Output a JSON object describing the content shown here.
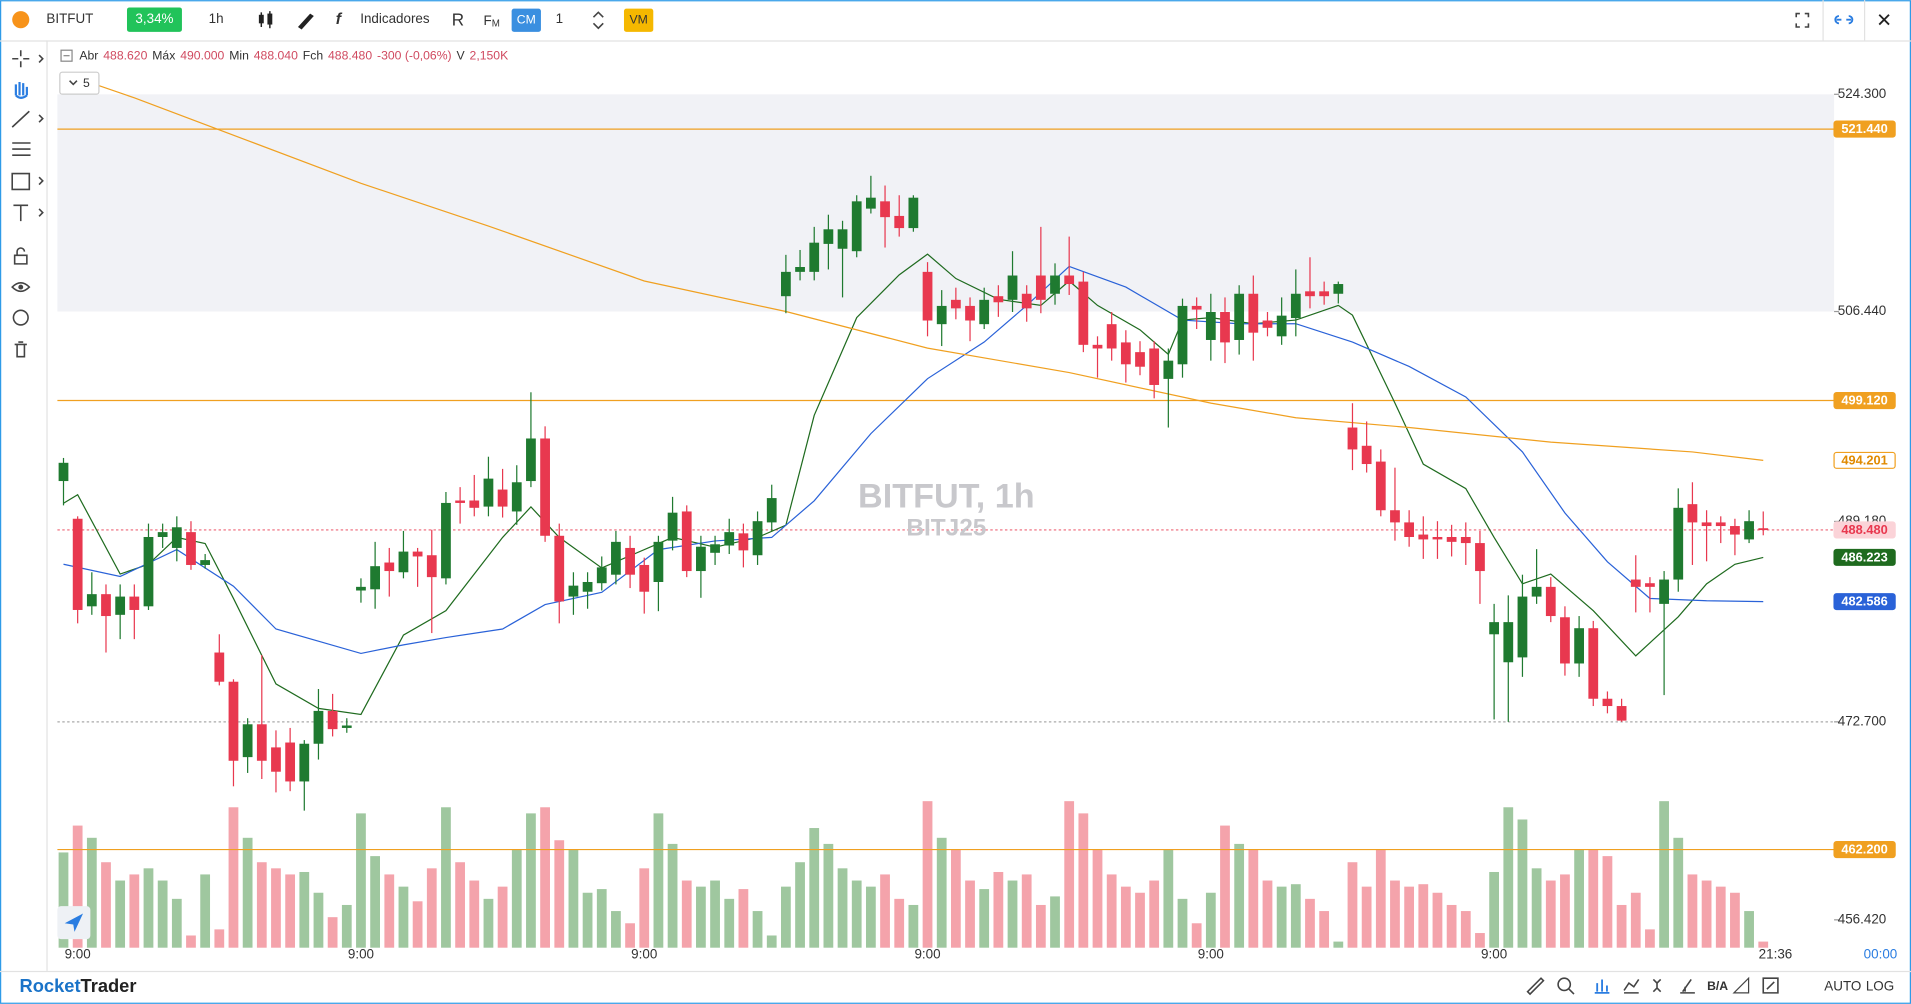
{
  "toolbar": {
    "symbol": "BITFUT",
    "change": "3,34%",
    "interval": "1h",
    "indicators": "Indicadores",
    "rx": "R",
    "fm": "F",
    "fm_sub": "M",
    "cm": "CM",
    "quantity": "1",
    "vm": "VM"
  },
  "legend": {
    "open_label": "Abr",
    "open": "488.620",
    "high_label": "Máx",
    "high": "490.000",
    "low_label": "Min",
    "low": "488.040",
    "close_label": "Fch",
    "close": "488.480",
    "change": "-300 (-0,06%)",
    "volume_label": "V",
    "volume": "2,150K",
    "collapse": "5"
  },
  "chart_data": {
    "type": "candlestick",
    "watermark": "BITFUT, 1h",
    "watermark_sub": "BITJ25",
    "categories": [
      null,
      "9:00",
      null,
      null,
      null,
      null,
      null,
      null,
      null,
      null,
      null,
      null,
      null,
      null,
      null,
      null,
      null,
      null,
      null,
      null,
      null,
      "9:00",
      null,
      null,
      null,
      null,
      null,
      null,
      null,
      null,
      null,
      null,
      null,
      null,
      null,
      null,
      null,
      null,
      null,
      null,
      null,
      "9:00",
      null,
      null,
      null,
      null,
      null,
      null,
      null,
      null,
      null,
      null,
      null,
      null,
      null,
      null,
      null,
      null,
      null,
      null,
      null,
      "9:00",
      null,
      null,
      null,
      null,
      null,
      null,
      null,
      null,
      null,
      null,
      null,
      null,
      null,
      null,
      null,
      null,
      null,
      null,
      null,
      "9:00",
      null,
      null,
      null,
      null,
      null,
      null,
      null,
      null,
      null,
      null,
      null,
      null,
      null,
      null,
      null,
      null,
      null,
      null,
      null,
      "9:00",
      null,
      null,
      null,
      null,
      null,
      null,
      null,
      null,
      null,
      null,
      null,
      null,
      null,
      null,
      null,
      null,
      null,
      null,
      null
    ],
    "candles": [
      [
        492.5,
        494.4,
        490.5,
        494
      ],
      [
        489.4,
        489.6,
        480.8,
        481.9
      ],
      [
        482.2,
        485,
        481.5,
        483.2
      ],
      [
        483.2,
        484,
        478.4,
        481.4
      ],
      [
        481.5,
        484,
        479.5,
        483
      ],
      [
        483,
        484,
        479.5,
        481.9
      ],
      [
        482.2,
        489,
        481.9,
        487.9
      ],
      [
        487.9,
        489,
        487,
        488.3
      ],
      [
        487,
        489.6,
        485.9,
        488.7
      ],
      [
        488.3,
        489.2,
        485.2,
        485.6
      ],
      [
        485.6,
        486.5,
        485.3,
        486
      ],
      [
        478.4,
        479.9,
        475.7,
        476
      ],
      [
        476,
        476.2,
        467.4,
        469.5
      ],
      [
        469.8,
        473,
        468.5,
        472.5
      ],
      [
        472.5,
        478.2,
        468,
        469.5
      ],
      [
        470.6,
        472,
        466.9,
        468.6
      ],
      [
        471,
        472.2,
        467,
        467.8
      ],
      [
        467.8,
        471.2,
        465.4,
        470.9
      ],
      [
        470.9,
        475.4,
        469.6,
        473.6
      ],
      [
        473.6,
        475,
        471.5,
        472.1
      ],
      [
        472.2,
        473,
        471.8,
        472.4
      ],
      [
        483.5,
        484.5,
        482.5,
        483.8
      ],
      [
        483.6,
        487.5,
        482,
        485.5
      ],
      [
        485.8,
        487,
        483,
        485.1
      ],
      [
        485,
        488.4,
        484.5,
        486.7
      ],
      [
        486.7,
        487,
        483.8,
        486.3
      ],
      [
        486.4,
        488.5,
        480,
        484.6
      ],
      [
        484.5,
        491.6,
        484,
        490.7
      ],
      [
        490.9,
        492,
        489,
        490.7
      ],
      [
        490.9,
        493,
        489.6,
        490.3
      ],
      [
        490.4,
        494.5,
        489.6,
        492.7
      ],
      [
        491.8,
        493.5,
        489.5,
        490.4
      ],
      [
        490,
        493.8,
        488.9,
        492.4
      ],
      [
        492.5,
        499.8,
        492,
        496
      ],
      [
        496,
        497,
        487.5,
        488
      ],
      [
        488,
        489,
        480.8,
        482.6
      ],
      [
        483,
        485,
        481.5,
        483.9
      ],
      [
        483.4,
        485,
        482,
        484.2
      ],
      [
        484.1,
        486.3,
        483.5,
        485.4
      ],
      [
        484.8,
        488.4,
        484,
        487.5
      ],
      [
        487,
        488,
        483.7,
        484.8
      ],
      [
        485.6,
        486.2,
        481.6,
        483.4
      ],
      [
        484.2,
        488,
        481.8,
        487.5
      ],
      [
        487.6,
        491.2,
        486.8,
        489.9
      ],
      [
        490,
        490.5,
        484.6,
        485.1
      ],
      [
        485.1,
        488,
        482.9,
        487.1
      ],
      [
        486.6,
        488,
        485.6,
        487.3
      ],
      [
        487.2,
        489.4,
        486.5,
        488.3
      ],
      [
        488.2,
        489,
        485.4,
        486.8
      ],
      [
        486.4,
        490,
        485.6,
        489.2
      ],
      [
        489.1,
        492.2,
        488.4,
        491.1
      ],
      [
        507.7,
        511.1,
        506.3,
        509.7
      ],
      [
        509.7,
        511.5,
        509,
        510.1
      ],
      [
        509.7,
        513.4,
        509,
        512.1
      ],
      [
        512,
        514.4,
        509.9,
        513.2
      ],
      [
        511.6,
        513.9,
        507.6,
        513.2
      ],
      [
        511.4,
        516,
        510.9,
        515.5
      ],
      [
        514.9,
        517.6,
        514.5,
        515.8
      ],
      [
        515.5,
        516.8,
        511.7,
        514.2
      ],
      [
        514.3,
        516,
        512.6,
        513.3
      ],
      [
        513.3,
        516,
        513,
        515.8
      ],
      [
        509.7,
        510.5,
        504.4,
        505.7
      ],
      [
        505.4,
        508.2,
        503.6,
        506.9
      ],
      [
        507.4,
        508.4,
        505.8,
        506.7
      ],
      [
        506.9,
        507.6,
        504,
        505.7
      ],
      [
        505.4,
        508.4,
        505,
        507.4
      ],
      [
        507.7,
        508.6,
        506,
        507.2
      ],
      [
        507.4,
        511.4,
        506.4,
        509.4
      ],
      [
        507.9,
        508.6,
        505.6,
        506.7
      ],
      [
        509.4,
        513.4,
        506.3,
        507.4
      ],
      [
        507.9,
        510.4,
        507,
        509.4
      ],
      [
        509.4,
        512.6,
        507.8,
        508.7
      ],
      [
        508.9,
        509.7,
        503.1,
        503.7
      ],
      [
        503.7,
        504.4,
        501,
        503.4
      ],
      [
        505.4,
        506.4,
        502.4,
        503.4
      ],
      [
        503.9,
        504.9,
        500.6,
        502.1
      ],
      [
        503.1,
        504,
        501.2,
        501.9
      ],
      [
        503.4,
        504,
        499.3,
        500.4
      ],
      [
        500.9,
        503.4,
        496.9,
        502.4
      ],
      [
        502.1,
        507.5,
        501,
        506.9
      ],
      [
        506.9,
        507.6,
        505,
        506.6
      ],
      [
        504.1,
        507.9,
        502.4,
        506.4
      ],
      [
        506.4,
        507.6,
        502.2,
        503.9
      ],
      [
        504.1,
        508.6,
        502.9,
        507.9
      ],
      [
        507.9,
        509.4,
        502.4,
        504.7
      ],
      [
        505.7,
        506.4,
        504.4,
        505.1
      ],
      [
        504.4,
        507.6,
        503.7,
        506.1
      ],
      [
        505.9,
        509.9,
        504.4,
        507.9
      ],
      [
        508.1,
        510.9,
        506.7,
        507.7
      ],
      [
        508.1,
        508.9,
        507,
        507.7
      ],
      [
        507.9,
        508.9,
        507.1,
        508.7
      ],
      [
        496.9,
        498.9,
        493.4,
        495.1
      ],
      [
        495.4,
        497.4,
        493.2,
        493.9
      ],
      [
        494.1,
        495.1,
        489.6,
        490.1
      ],
      [
        490.1,
        493.6,
        487.6,
        489.1
      ],
      [
        489.1,
        490.1,
        487.1,
        487.9
      ],
      [
        488.1,
        489.6,
        486.1,
        487.7
      ],
      [
        487.9,
        489.2,
        486.1,
        487.7
      ],
      [
        487.9,
        488.9,
        486.3,
        487.5
      ],
      [
        487.9,
        489.1,
        485.6,
        487.4
      ],
      [
        487.4,
        488.4,
        482.4,
        485.1
      ],
      [
        479.9,
        482.4,
        472.9,
        480.9
      ],
      [
        477.6,
        483.1,
        472.7,
        480.9
      ],
      [
        478,
        484.8,
        476.4,
        483
      ],
      [
        483,
        486.9,
        482.4,
        483.8
      ],
      [
        483.8,
        484.6,
        480.9,
        481.4
      ],
      [
        481.3,
        482.2,
        476.5,
        477.5
      ],
      [
        477.5,
        481.4,
        476.4,
        480.4
      ],
      [
        480.4,
        481,
        474,
        474.6
      ],
      [
        474.6,
        475.2,
        473.4,
        474
      ],
      [
        474,
        474.6,
        472.7,
        472.8
      ],
      [
        484.4,
        486.4,
        481.7,
        483.8
      ],
      [
        484.1,
        484.6,
        481.7,
        483.8
      ],
      [
        482.4,
        485.1,
        474.9,
        484.4
      ],
      [
        484.4,
        491.9,
        483.4,
        490.3
      ],
      [
        490.6,
        492.4,
        485.6,
        489.1
      ],
      [
        489.1,
        490.1,
        485.9,
        488.8
      ],
      [
        489.1,
        489.6,
        487.4,
        488.8
      ],
      [
        488.8,
        489.4,
        486.4,
        488.1
      ],
      [
        487.7,
        490.1,
        487.4,
        489.2
      ],
      [
        488.62,
        490,
        488.04,
        488.48
      ]
    ],
    "volumes": [
      33540,
      43000,
      38700,
      30100,
      23650,
      25800,
      27950,
      23650,
      17200,
      4300,
      25800,
      6450,
      49450,
      38700,
      30100,
      27950,
      25800,
      26660,
      19350,
      10750,
      15050,
      47300,
      32250,
      25800,
      21500,
      16340,
      27950,
      49450,
      30100,
      23650,
      17200,
      21500,
      34400,
      47300,
      49450,
      37840,
      34400,
      19350,
      20640,
      12900,
      8600,
      27950,
      47300,
      36550,
      23650,
      21500,
      23650,
      17200,
      20640,
      12900,
      4300,
      21500,
      30100,
      42140,
      36550,
      27950,
      23650,
      21500,
      25800,
      17200,
      15050,
      51600,
      38700,
      34400,
      23650,
      20640,
      26660,
      23650,
      25800,
      15050,
      18060,
      51600,
      47300,
      34400,
      25800,
      21500,
      19350,
      23650,
      34400,
      17200,
      8600,
      19350,
      43000,
      36550,
      34400,
      23650,
      21500,
      22360,
      17200,
      12900,
      2150,
      30100,
      21500,
      34400,
      23650,
      21500,
      22360,
      19350,
      15050,
      12900,
      5160,
      26660,
      49450,
      45150,
      27950,
      23650,
      25800,
      34400,
      34400,
      32250,
      15050,
      19350,
      6450,
      51600,
      38700,
      25800,
      23650,
      21500,
      19350,
      12900,
      2150
    ],
    "up_color": "#1f7a30",
    "down_color": "#e8384f",
    "up_volume_color": "#9fc79f",
    "down_volume_color": "#f4a3ab",
    "ylim": [
      454.13,
      528.73
    ],
    "yticks": [
      {
        "value": 456.42,
        "label": "456.420"
      },
      {
        "value": 472.7,
        "label": "472.700",
        "line": "dotted"
      },
      {
        "value": 489.18,
        "label": "489.180"
      },
      {
        "value": 506.44,
        "label": "506.440"
      },
      {
        "value": 524.3,
        "label": "524.300"
      }
    ],
    "bands": [
      {
        "from": 506.44,
        "to": 524.3
      }
    ],
    "grid": false,
    "levels": [
      {
        "value": 521.44,
        "label": "521.440",
        "color": "#f0a020"
      },
      {
        "value": 499.12,
        "label": "499.120",
        "color": "#f0a020"
      },
      {
        "value": 462.2,
        "label": "462.200",
        "color": "#f0a020"
      }
    ],
    "last_price": {
      "value": 488.48,
      "label": "488.480",
      "color": "#e8384f"
    },
    "series": [
      {
        "color": "#1f6b1f",
        "x": [
          0,
          1,
          4,
          6,
          8,
          10,
          12,
          15,
          18,
          21,
          24,
          27,
          31,
          33,
          35,
          38,
          40,
          43,
          46,
          49,
          51,
          53,
          56,
          59,
          61,
          63,
          66,
          69,
          71,
          73,
          76,
          78,
          79,
          81,
          84,
          87,
          90,
          91,
          94,
          96,
          99,
          101,
          103,
          105,
          108,
          111,
          114,
          116,
          118,
          120
        ],
        "values": [
          490.68,
          491.38,
          484.85,
          485.66,
          487.87,
          487.36,
          482.85,
          475.82,
          473.81,
          473.31,
          479.83,
          481.84,
          487.87,
          490.38,
          487.87,
          485.36,
          486.36,
          487.87,
          487.06,
          487.87,
          488.87,
          497.91,
          505.94,
          509.45,
          511.16,
          509.15,
          507.44,
          506.94,
          508.95,
          506.94,
          504.93,
          502.92,
          505.74,
          505.94,
          505.44,
          505.74,
          506.94,
          506.14,
          498.91,
          493.89,
          491.88,
          487.87,
          484.05,
          484.85,
          481.84,
          478.13,
          481.34,
          484.05,
          485.66,
          486.223
        ],
        "last_label": "486.223",
        "tag_fill": "#1f6b1f",
        "tag_text": "#ffffff"
      },
      {
        "color": "#2a62d8",
        "x": [
          0,
          4,
          8,
          12,
          15,
          18,
          21,
          24,
          27,
          31,
          34,
          38,
          42,
          46,
          50,
          53,
          57,
          61,
          65,
          68,
          71,
          75,
          79,
          83,
          87,
          91,
          95,
          99,
          103,
          106,
          109,
          112,
          116,
          120
        ],
        "values": [
          485.66,
          484.65,
          486.86,
          483.85,
          480.34,
          479.33,
          478.33,
          479.03,
          479.63,
          480.34,
          482.34,
          483.35,
          486.86,
          487.57,
          487.87,
          490.88,
          496.4,
          500.92,
          503.93,
          506.94,
          510.15,
          508.45,
          505.74,
          505.44,
          505.44,
          503.93,
          501.92,
          499.41,
          494.89,
          489.87,
          485.86,
          482.85,
          482.65,
          482.586
        ],
        "last_label": "482.586",
        "tag_fill": "#2a62d8",
        "tag_text": "#ffffff"
      },
      {
        "color": "#f0a020",
        "x": [
          0,
          5,
          13,
          21,
          30,
          41,
          51,
          61,
          71,
          81,
          87,
          95,
          105,
          115,
          120
        ],
        "values": [
          526.02,
          524.01,
          520.5,
          516.98,
          513.47,
          508.95,
          506.44,
          503.43,
          501.42,
          498.91,
          497.71,
          496.9,
          495.7,
          494.89,
          494.201
        ],
        "last_label": "494.201",
        "tag_fill": "#ffffff",
        "tag_text": "#e08a00"
      }
    ],
    "time_label": "21:36",
    "countdown": "00:00"
  },
  "footer": {
    "brand_a": "Rocket",
    "brand_b": "Trader",
    "ba": "B/A",
    "auto": "AUTO",
    "log": "LOG"
  }
}
